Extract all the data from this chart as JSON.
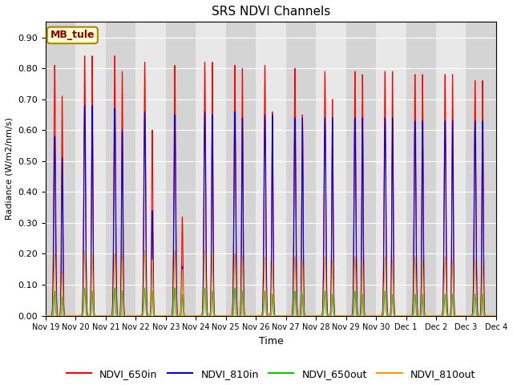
{
  "title": "SRS NDVI Channels",
  "ylabel": "Radiance (W/m2/nm/s)",
  "xlabel": "Time",
  "annotation_text": "MB_tule",
  "ylim": [
    0.0,
    0.95
  ],
  "yticks": [
    0.0,
    0.1,
    0.2,
    0.3,
    0.4,
    0.5,
    0.6,
    0.7,
    0.8,
    0.9
  ],
  "colors": {
    "NDVI_650in": "#ff0000",
    "NDVI_810in": "#0000dd",
    "NDVI_650out": "#00cc00",
    "NDVI_810out": "#ff9900"
  },
  "plot_bg_color": "#e0e0e0",
  "band_colors": [
    "#d4d4d4",
    "#e8e8e8"
  ],
  "n_days": 15,
  "start_day": 19,
  "peaks_650in": [
    0.81,
    0.84,
    0.84,
    0.82,
    0.81,
    0.82,
    0.81,
    0.81,
    0.8,
    0.79,
    0.79,
    0.79,
    0.78,
    0.78,
    0.76
  ],
  "peaks2_650in": [
    0.71,
    0.84,
    0.79,
    0.6,
    0.32,
    0.82,
    0.8,
    0.66,
    0.65,
    0.7,
    0.78,
    0.79,
    0.78,
    0.78,
    0.76
  ],
  "peaks_810in": [
    0.58,
    0.68,
    0.67,
    0.66,
    0.65,
    0.66,
    0.66,
    0.65,
    0.64,
    0.64,
    0.64,
    0.64,
    0.63,
    0.63,
    0.63
  ],
  "peaks2_810in": [
    0.51,
    0.68,
    0.6,
    0.34,
    0.16,
    0.65,
    0.64,
    0.65,
    0.64,
    0.64,
    0.64,
    0.64,
    0.63,
    0.63,
    0.63
  ],
  "peaks_650out": [
    0.08,
    0.09,
    0.09,
    0.09,
    0.09,
    0.09,
    0.09,
    0.08,
    0.08,
    0.08,
    0.08,
    0.08,
    0.07,
    0.07,
    0.07
  ],
  "peaks2_650out": [
    0.06,
    0.08,
    0.08,
    0.08,
    0.07,
    0.08,
    0.08,
    0.07,
    0.07,
    0.07,
    0.07,
    0.07,
    0.07,
    0.07,
    0.07
  ],
  "peaks_810out": [
    0.2,
    0.21,
    0.2,
    0.21,
    0.21,
    0.21,
    0.2,
    0.19,
    0.19,
    0.19,
    0.19,
    0.19,
    0.19,
    0.19,
    0.18
  ],
  "peaks2_810out": [
    0.14,
    0.2,
    0.19,
    0.18,
    0.15,
    0.2,
    0.19,
    0.18,
    0.18,
    0.18,
    0.18,
    0.18,
    0.18,
    0.18,
    0.17
  ],
  "legend_labels": [
    "NDVI_650in",
    "NDVI_810in",
    "NDVI_650out",
    "NDVI_810out"
  ]
}
